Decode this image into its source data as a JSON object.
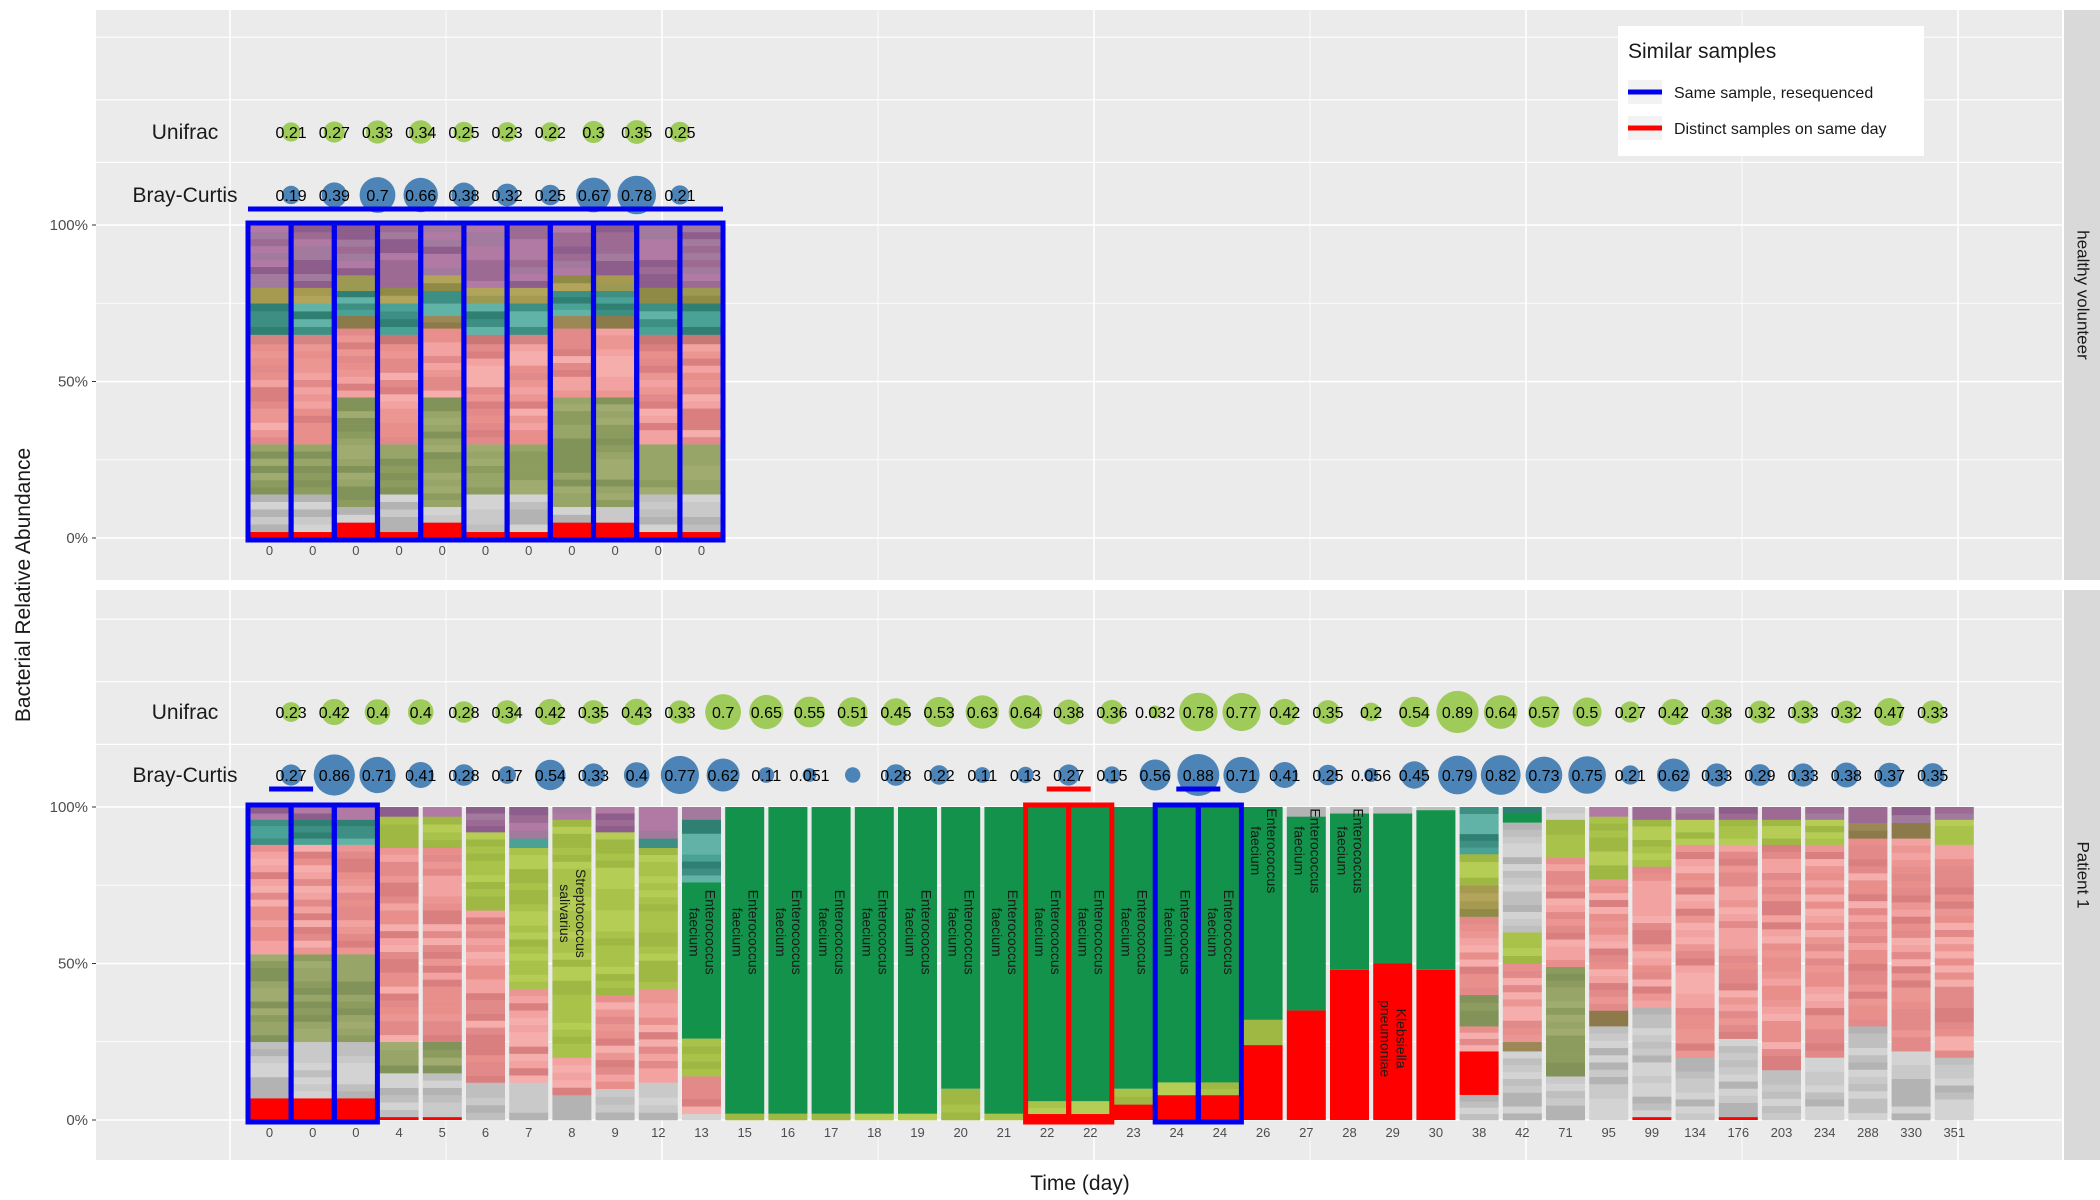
{
  "chart_data": {
    "type": "bar",
    "title": "",
    "xlabel": "Time (day)",
    "ylabel": "Bacterial Relative Abundance",
    "yticks": [
      "0%",
      "50%",
      "100%"
    ],
    "ylim": [
      0,
      100
    ],
    "legend": {
      "title": "Similar samples",
      "placement": "top-right",
      "items": [
        {
          "label": "Same sample, resequenced",
          "color": "#0000ee"
        },
        {
          "label": "Distinct samples on same day",
          "color": "#ff0000"
        }
      ]
    },
    "panels": [
      {
        "strip": "healthy volunteer",
        "metric_labels": [
          "Unifrac",
          "Bray-Curtis"
        ],
        "samples": [
          "0",
          "0",
          "0",
          "0",
          "0",
          "0",
          "0",
          "0",
          "0",
          "0",
          "0"
        ],
        "unifrac": [
          "0.21",
          "0.27",
          "0.33",
          "0.34",
          "0.25",
          "0.23",
          "0.22",
          "0.3",
          "0.35",
          "0.25"
        ],
        "bray_curtis": [
          "0.19",
          "0.39",
          "0.7",
          "0.66",
          "0.38",
          "0.32",
          "0.25",
          "0.67",
          "0.78",
          "0.21"
        ]
      },
      {
        "strip": "Patient 1",
        "metric_labels": [
          "Unifrac",
          "Bray-Curtis"
        ],
        "samples": [
          "0",
          "0",
          "0",
          "4",
          "5",
          "6",
          "7",
          "8",
          "9",
          "12",
          "13",
          "15",
          "16",
          "17",
          "18",
          "19",
          "20",
          "21",
          "22",
          "22",
          "23",
          "24",
          "24",
          "26",
          "27",
          "28",
          "29",
          "30",
          "38",
          "42",
          "71",
          "95",
          "99",
          "134",
          "176",
          "203",
          "234",
          "288",
          "330",
          "351"
        ],
        "unifrac": [
          "0.23",
          "0.42",
          "0.4",
          "0.4",
          "0.28",
          "0.34",
          "0.42",
          "0.35",
          "0.43",
          "0.33",
          "0.7",
          "0.65",
          "0.55",
          "0.51",
          "0.45",
          "0.53",
          "0.63",
          "0.64",
          "0.38",
          "0.36",
          "0.032",
          "0.78",
          "0.77",
          "0.42",
          "0.35",
          "0.2",
          "0.54",
          "0.89",
          "0.64",
          "0.57",
          "0.5",
          "0.27",
          "0.42",
          "0.38",
          "0.32",
          "0.33",
          "0.32",
          "0.47",
          "0.33"
        ],
        "bray_curtis": [
          "0.27",
          "0.86",
          "0.71",
          "0.41",
          "0.28",
          "0.17",
          "0.54",
          "0.33",
          "0.4",
          "0.77",
          "0.62",
          "0.11",
          "0.051",
          "",
          "0.28",
          "0.22",
          "0.11",
          "0.13",
          "0.27",
          "0.15",
          "0.56",
          "0.88",
          "0.71",
          "0.41",
          "0.25",
          "0.056",
          "0.45",
          "0.79",
          "0.82",
          "0.73",
          "0.75",
          "0.21",
          "0.62",
          "0.33",
          "0.29",
          "0.33",
          "0.38",
          "0.37",
          "0.35"
        ],
        "bar_labels": [
          {
            "sample_index": 7,
            "text": [
              "Streptococcus",
              "salivarius"
            ]
          },
          {
            "sample_index": 10,
            "text": [
              "Enterococcus",
              "faecium"
            ]
          },
          {
            "sample_index": 11,
            "text": [
              "Enterococcus",
              "faecium"
            ]
          },
          {
            "sample_index": 12,
            "text": [
              "Enterococcus",
              "faecium"
            ]
          },
          {
            "sample_index": 13,
            "text": [
              "Enterococcus",
              "faecium"
            ]
          },
          {
            "sample_index": 14,
            "text": [
              "Enterococcus",
              "faecium"
            ]
          },
          {
            "sample_index": 15,
            "text": [
              "Enterococcus",
              "faecium"
            ]
          },
          {
            "sample_index": 16,
            "text": [
              "Enterococcus",
              "faecium"
            ]
          },
          {
            "sample_index": 17,
            "text": [
              "Enterococcus",
              "faecium"
            ]
          },
          {
            "sample_index": 18,
            "text": [
              "Enterococcus",
              "faecium"
            ]
          },
          {
            "sample_index": 19,
            "text": [
              "Enterococcus",
              "faecium"
            ]
          },
          {
            "sample_index": 20,
            "text": [
              "Enterococcus",
              "faecium"
            ]
          },
          {
            "sample_index": 21,
            "text": [
              "Enterococcus",
              "faecium"
            ]
          },
          {
            "sample_index": 22,
            "text": [
              "Enterococcus",
              "faecium"
            ]
          },
          {
            "sample_index": 23,
            "text": [
              "Enterococcus",
              "faecium"
            ]
          },
          {
            "sample_index": 24,
            "text": [
              "Enterococcus",
              "faecium"
            ]
          },
          {
            "sample_index": 25,
            "text": [
              "Enterococcus",
              "faecium"
            ]
          },
          {
            "sample_index": 26,
            "text": [
              "Klebsiella",
              "pneumoniae"
            ]
          }
        ]
      }
    ]
  }
}
